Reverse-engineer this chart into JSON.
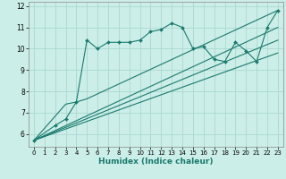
{
  "xlabel": "Humidex (Indice chaleur)",
  "bg_color": "#cceee8",
  "grid_color": "#aad8d0",
  "line_color": "#1a7a6e",
  "xlim": [
    -0.5,
    23.5
  ],
  "ylim": [
    5.4,
    12.2
  ],
  "yticks": [
    6,
    7,
    8,
    9,
    10,
    11,
    12
  ],
  "xticks": [
    0,
    1,
    2,
    3,
    4,
    5,
    6,
    7,
    8,
    9,
    10,
    11,
    12,
    13,
    14,
    15,
    16,
    17,
    18,
    19,
    20,
    21,
    22,
    23
  ],
  "series1_x": [
    0,
    2,
    3,
    4,
    5,
    6,
    7,
    8,
    9,
    10,
    11,
    12,
    13,
    14,
    15,
    16,
    17,
    18,
    19,
    20,
    21,
    22,
    23
  ],
  "series1_y": [
    5.7,
    6.4,
    6.7,
    7.5,
    10.4,
    10.0,
    10.3,
    10.3,
    10.3,
    10.4,
    10.8,
    10.9,
    11.2,
    11.0,
    10.0,
    10.1,
    9.5,
    9.4,
    10.3,
    9.9,
    9.4,
    11.0,
    11.8
  ],
  "series2_x": [
    0,
    3,
    4,
    5,
    23
  ],
  "series2_y": [
    5.7,
    7.4,
    7.5,
    7.65,
    11.8
  ],
  "series3_x": [
    0,
    23
  ],
  "series3_y": [
    5.7,
    11.0
  ],
  "series4_x": [
    0,
    23
  ],
  "series4_y": [
    5.7,
    10.4
  ],
  "series5_x": [
    0,
    23
  ],
  "series5_y": [
    5.7,
    9.8
  ]
}
